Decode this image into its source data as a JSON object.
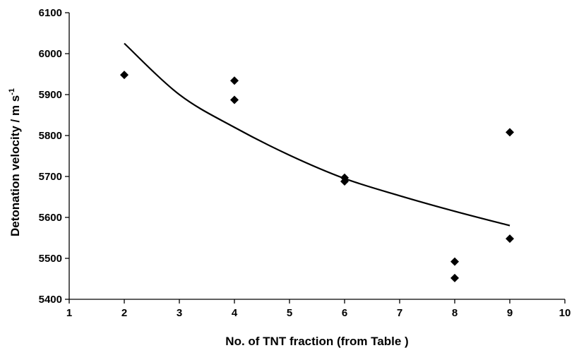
{
  "chart_data": {
    "type": "scatter",
    "title": "",
    "xlabel": "No. of TNT fraction (from Table  )",
    "ylabel_main": "Detonation velocity / m s",
    "ylabel_sup": "-1",
    "xlim": [
      1,
      10
    ],
    "ylim": [
      5400,
      6100
    ],
    "xticks": [
      1,
      2,
      3,
      4,
      5,
      6,
      7,
      8,
      9,
      10
    ],
    "yticks": [
      5400,
      5500,
      5600,
      5700,
      5800,
      5900,
      6000,
      6100
    ],
    "grid": false,
    "legend": "none",
    "marker": "diamond",
    "marker_color": "#000000",
    "points": [
      {
        "x": 2,
        "y": 5948
      },
      {
        "x": 4,
        "y": 5934
      },
      {
        "x": 4,
        "y": 5887
      },
      {
        "x": 6,
        "y": 5697
      },
      {
        "x": 6,
        "y": 5688
      },
      {
        "x": 8,
        "y": 5492
      },
      {
        "x": 8,
        "y": 5452
      },
      {
        "x": 9,
        "y": 5808
      },
      {
        "x": 9,
        "y": 5548
      }
    ],
    "trendline": {
      "type": "fitted-curve",
      "color": "#000000",
      "points": [
        {
          "x": 2,
          "y": 6025
        },
        {
          "x": 3,
          "y": 5900
        },
        {
          "x": 4,
          "y": 5820
        },
        {
          "x": 5,
          "y": 5752
        },
        {
          "x": 6,
          "y": 5695
        },
        {
          "x": 7,
          "y": 5653
        },
        {
          "x": 8,
          "y": 5615
        },
        {
          "x": 9,
          "y": 5580
        }
      ]
    }
  }
}
